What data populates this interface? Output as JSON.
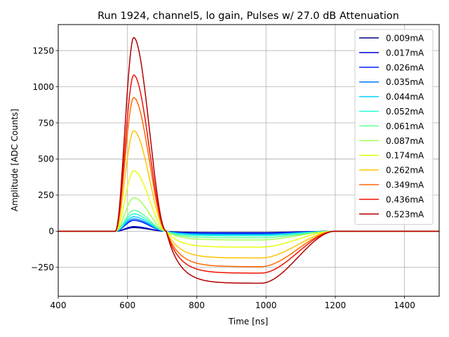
{
  "chart_data": {
    "type": "line",
    "title": "Run 1924, channel5, lo gain, Pulses w/ 27.0 dB Attenuation",
    "xlabel": "Time [ns]",
    "ylabel": "Amplitude [ADC Counts]",
    "xlim": [
      400,
      1500
    ],
    "ylim": [
      -450,
      1430
    ],
    "xticks": [
      400,
      600,
      800,
      1000,
      1200,
      1400
    ],
    "yticks": [
      -250,
      0,
      250,
      500,
      750,
      1000,
      1250
    ],
    "grid": true,
    "legend_position": "top-right",
    "pulse_shape": {
      "baseline_end_ns": 565,
      "peak_time_ns": 618,
      "zero_crossing_ns": 712,
      "undershoot_hold_end_ns": 985,
      "recovery_end_ns": 1200
    },
    "series": [
      {
        "name": "0.009mA",
        "color": "#00007f",
        "peak": 25,
        "undershoot": -9
      },
      {
        "name": "0.017mA",
        "color": "#0000d4",
        "peak": 32,
        "undershoot": -12
      },
      {
        "name": "0.026mA",
        "color": "#0022ff",
        "peak": 75,
        "undershoot": -15
      },
      {
        "name": "0.035mA",
        "color": "#0078ff",
        "peak": 85,
        "undershoot": -20
      },
      {
        "name": "0.044mA",
        "color": "#00d0ff",
        "peak": 100,
        "undershoot": -25
      },
      {
        "name": "0.052mA",
        "color": "#26ffd0",
        "peak": 120,
        "undershoot": -32
      },
      {
        "name": "0.061mA",
        "color": "#63ff94",
        "peak": 145,
        "undershoot": -45
      },
      {
        "name": "0.087mA",
        "color": "#a0ff56",
        "peak": 232,
        "undershoot": -60
      },
      {
        "name": "0.174mA",
        "color": "#e6ff12",
        "peak": 418,
        "undershoot": -110
      },
      {
        "name": "0.262mA",
        "color": "#ffc400",
        "peak": 695,
        "undershoot": -185
      },
      {
        "name": "0.349mA",
        "color": "#ff6800",
        "peak": 925,
        "undershoot": -245
      },
      {
        "name": "0.436mA",
        "color": "#f01000",
        "peak": 1080,
        "undershoot": -290
      },
      {
        "name": "0.523mA",
        "color": "#b20000",
        "peak": 1340,
        "undershoot": -360
      }
    ]
  }
}
